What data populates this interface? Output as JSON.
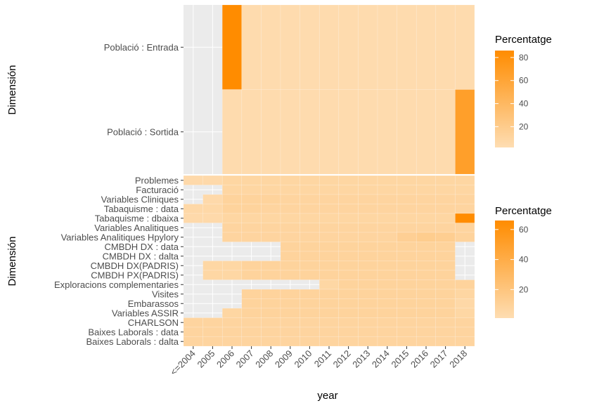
{
  "chart_data": {
    "type": "heatmap",
    "xlabel": "year",
    "x_categories": [
      "<=2004",
      "2005",
      "2006",
      "2007",
      "2008",
      "2009",
      "2010",
      "2011",
      "2012",
      "2013",
      "2014",
      "2015",
      "2016",
      "2017",
      "2018"
    ],
    "colors": {
      "low": "#FEDDB2",
      "high": "#FF8C00",
      "panel_bg": "#EBEBEB",
      "grid": "#FFFFFF"
    },
    "panels": [
      {
        "ylabel": "Dimensión",
        "rows": [
          "Població : Entrada",
          "Població : Sortida"
        ],
        "legend": {
          "title": "Percentatge",
          "min": 2,
          "max": 86,
          "ticks": [
            20,
            40,
            60,
            80
          ]
        },
        "cells": [
          {
            "row": "Població : Entrada",
            "values": [
              null,
              null,
              86,
              4,
              4,
              4,
              4,
              4,
              4,
              4,
              4,
              4,
              4,
              4,
              4
            ]
          },
          {
            "row": "Població : Sortida",
            "values": [
              null,
              null,
              4,
              4,
              4,
              4,
              4,
              4,
              4,
              4,
              4,
              4,
              4,
              4,
              66
            ]
          }
        ]
      },
      {
        "ylabel": "Dimensión",
        "rows": [
          "Problemes",
          "Facturació",
          "Variables Cliniques",
          "Tabaquisme : data",
          "Tabaquisme : dbaixa",
          "Variables Analitiques",
          "Variables Analitiques Hpylory",
          "CMBDH DX : data",
          "CMBDH DX : dalta",
          "CMBDH DX(PADRIS)",
          "CMBDH PX(PADRIS)",
          "Exploracions complementaries",
          "Visites",
          "Embarassos",
          "Variables ASSIR",
          "CHARLSON",
          "Baixes Laborals : data",
          "Baixes Laborals : dalta"
        ],
        "legend": {
          "title": "Percentatge",
          "min": 1,
          "max": 66,
          "ticks": [
            20,
            40,
            60
          ]
        },
        "cells": [
          {
            "row": "Problemes",
            "values": [
              4,
              4,
              7,
              7,
              7,
              7,
              7,
              7,
              7,
              7,
              7,
              7,
              7,
              7,
              7
            ]
          },
          {
            "row": "Facturació",
            "values": [
              null,
              null,
              7,
              7,
              7,
              7,
              7,
              7,
              7,
              7,
              7,
              7,
              7,
              7,
              7
            ]
          },
          {
            "row": "Variables Cliniques",
            "values": [
              null,
              4,
              9,
              9,
              9,
              8,
              8,
              8,
              8,
              8,
              8,
              8,
              8,
              8,
              8
            ]
          },
          {
            "row": "Tabaquisme : data",
            "values": [
              5,
              5,
              9,
              9,
              8,
              8,
              8,
              8,
              8,
              8,
              8,
              8,
              8,
              8,
              8
            ]
          },
          {
            "row": "Tabaquisme : dbaixa",
            "values": [
              4,
              4,
              7,
              7,
              7,
              7,
              7,
              7,
              7,
              7,
              7,
              7,
              7,
              7,
              66
            ]
          },
          {
            "row": "Variables Analitiques",
            "values": [
              null,
              null,
              8,
              8,
              8,
              8,
              8,
              8,
              8,
              8,
              8,
              8,
              8,
              8,
              8
            ]
          },
          {
            "row": "Variables Analitiques Hpylory",
            "values": [
              null,
              null,
              8,
              8,
              8,
              8,
              8,
              8,
              8,
              8,
              8,
              12,
              14,
              13,
              9
            ]
          },
          {
            "row": "CMBDH DX : data",
            "values": [
              null,
              null,
              null,
              null,
              null,
              9,
              9,
              9,
              9,
              9,
              9,
              9,
              9,
              9,
              null
            ]
          },
          {
            "row": "CMBDH DX : dalta",
            "values": [
              null,
              null,
              null,
              null,
              null,
              9,
              9,
              9,
              9,
              9,
              9,
              9,
              9,
              9,
              null
            ]
          },
          {
            "row": "CMBDH DX(PADRIS)",
            "values": [
              null,
              6,
              6,
              9,
              9,
              9,
              9,
              9,
              9,
              9,
              9,
              9,
              9,
              9,
              null
            ]
          },
          {
            "row": "CMBDH PX(PADRIS)",
            "values": [
              null,
              6,
              6,
              9,
              9,
              9,
              9,
              9,
              9,
              9,
              9,
              9,
              9,
              9,
              null
            ]
          },
          {
            "row": "Exploracions complementaries",
            "values": [
              null,
              null,
              null,
              null,
              null,
              null,
              null,
              6,
              9,
              9,
              9,
              9,
              9,
              9,
              9
            ]
          },
          {
            "row": "Visites",
            "values": [
              null,
              null,
              null,
              9,
              9,
              9,
              9,
              9,
              9,
              9,
              9,
              9,
              9,
              9,
              7
            ]
          },
          {
            "row": "Embarassos",
            "values": [
              null,
              null,
              null,
              9,
              9,
              9,
              9,
              9,
              9,
              9,
              9,
              9,
              9,
              9,
              5
            ]
          },
          {
            "row": "Variables ASSIR",
            "values": [
              null,
              null,
              7,
              9,
              9,
              9,
              9,
              9,
              9,
              9,
              9,
              9,
              9,
              9,
              6
            ]
          },
          {
            "row": "CHARLSON",
            "values": [
              8,
              8,
              8,
              8,
              8,
              8,
              8,
              8,
              8,
              8,
              8,
              8,
              8,
              8,
              8
            ]
          },
          {
            "row": "Baixes Laborals : data",
            "values": [
              8,
              8,
              8,
              8,
              8,
              8,
              8,
              8,
              8,
              8,
              8,
              8,
              8,
              8,
              8
            ]
          },
          {
            "row": "Baixes Laborals : dalta",
            "values": [
              8,
              8,
              8,
              8,
              8,
              8,
              8,
              8,
              8,
              8,
              8,
              8,
              8,
              8,
              8
            ]
          }
        ]
      }
    ]
  }
}
